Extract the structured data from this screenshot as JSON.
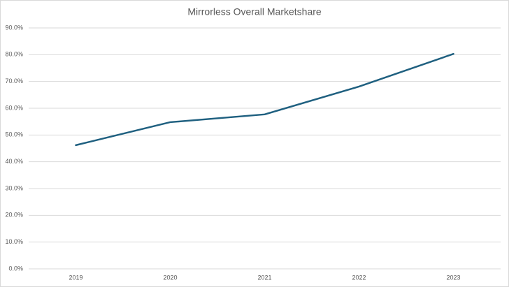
{
  "chart_data": {
    "type": "line",
    "title": "Mirrorless Overall Marketshare",
    "categories": [
      "2019",
      "2020",
      "2021",
      "2022",
      "2023"
    ],
    "series": [
      {
        "name": "Mirrorless",
        "color": "#1f6080",
        "values": [
          46.2,
          54.8,
          57.7,
          68.1,
          80.3
        ]
      }
    ],
    "ylim": [
      0,
      90
    ],
    "yticks": [
      {
        "value": 0,
        "label": "0.0%"
      },
      {
        "value": 10,
        "label": "10.0%"
      },
      {
        "value": 20,
        "label": "20.0%"
      },
      {
        "value": 30,
        "label": "30.0%"
      },
      {
        "value": 40,
        "label": "40.0%"
      },
      {
        "value": 50,
        "label": "50.0%"
      },
      {
        "value": 60,
        "label": "60.0%"
      },
      {
        "value": 70,
        "label": "70.0%"
      },
      {
        "value": 80,
        "label": "80.0%"
      },
      {
        "value": 90,
        "label": "90.0%"
      }
    ],
    "grid": true
  }
}
